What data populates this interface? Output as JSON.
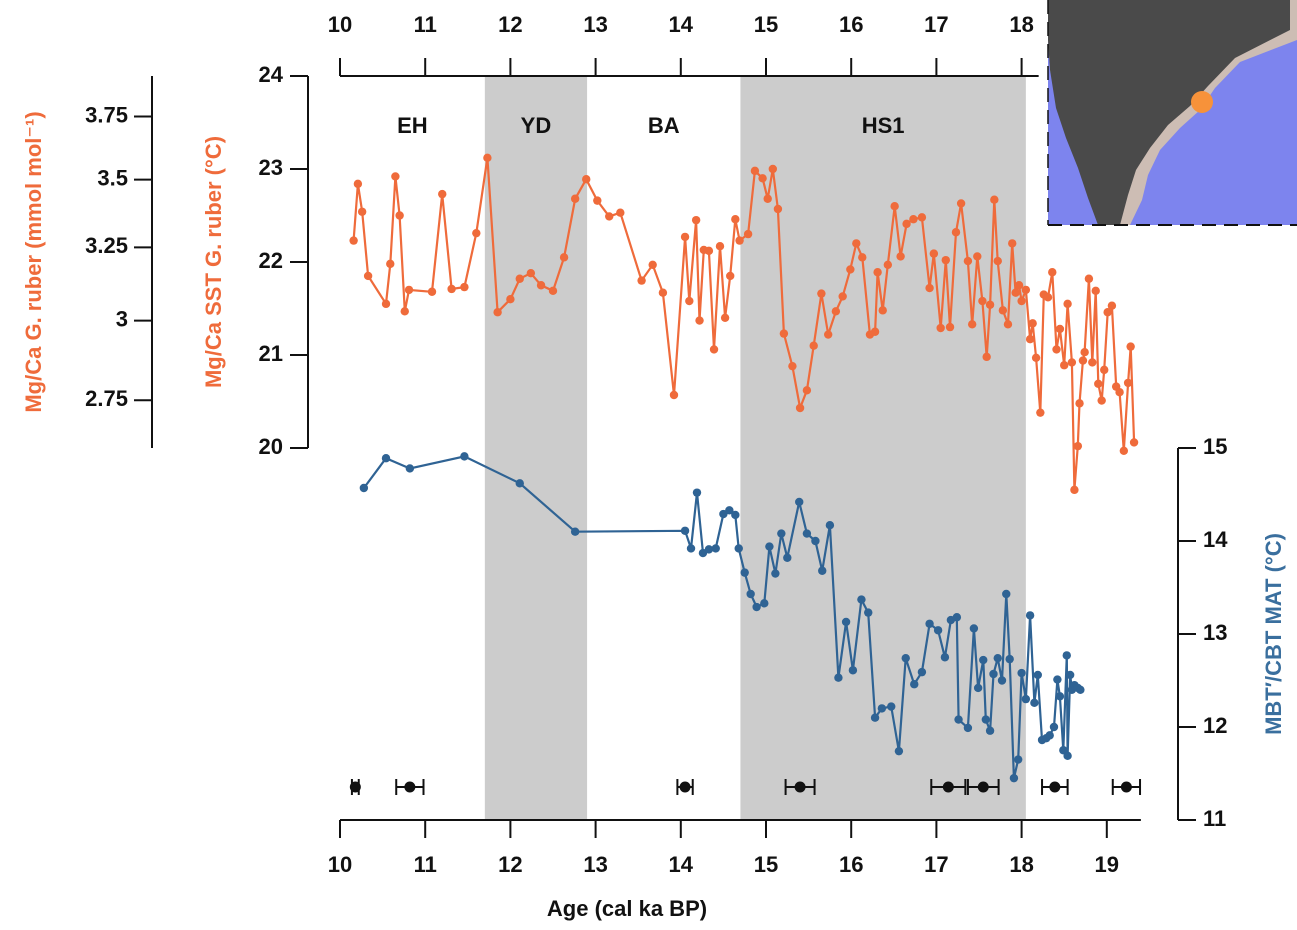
{
  "chart_data": {
    "type": "line",
    "xlabel": "Age (cal ka BP)",
    "xlim": [
      10,
      19.4
    ],
    "xticks": [
      10,
      11,
      12,
      13,
      14,
      15,
      16,
      17,
      18,
      19
    ],
    "top_xlim": [
      10,
      18.2
    ],
    "top_xticks": [
      10,
      11,
      12,
      13,
      14,
      15,
      16,
      17,
      18
    ],
    "ylabel": "Mg/Ca SST G. ruber (°C)",
    "ylim": [
      20,
      24
    ],
    "yticks": [
      20,
      21,
      22,
      23,
      24
    ],
    "y2label": "MBT′/CBT MAT (°C)",
    "y2lim": [
      11,
      15
    ],
    "y2ticks": [
      11,
      12,
      13,
      14,
      15
    ],
    "y3label": "Mg/Ca G. ruber (mmol mol⁻¹)",
    "y3lim": [
      2.61,
      3.92
    ],
    "y3ticks": [
      2.75,
      3,
      3.25,
      3.5,
      3.75
    ],
    "y3scale": "log",
    "periods": [
      {
        "name": "EH",
        "start": 10,
        "end": 11.7,
        "shaded": false
      },
      {
        "name": "YD",
        "start": 11.7,
        "end": 12.9,
        "shaded": true
      },
      {
        "name": "BA",
        "start": 12.9,
        "end": 14.7,
        "shaded": false
      },
      {
        "name": "HS1",
        "start": 14.7,
        "end": 18.05,
        "shaded": true
      }
    ],
    "series": [
      {
        "color": "#ef6b3b",
        "axis": "y",
        "x": [
          10.16,
          10.21,
          10.26,
          10.33,
          10.54,
          10.59,
          10.65,
          10.7,
          10.76,
          10.81,
          11.08,
          11.2,
          11.31,
          11.46,
          11.6,
          11.73,
          11.85,
          12.0,
          12.11,
          12.24,
          12.36,
          12.5,
          12.63,
          12.76,
          12.89,
          13.02,
          13.16,
          13.29,
          13.54,
          13.67,
          13.79,
          13.92,
          14.05,
          14.1,
          14.18,
          14.22,
          14.27,
          14.33,
          14.39,
          14.46,
          14.52,
          14.58,
          14.64,
          14.69,
          14.79,
          14.87,
          14.96,
          15.02,
          15.08,
          15.14,
          15.21,
          15.31,
          15.4,
          15.48,
          15.56,
          15.65,
          15.73,
          15.82,
          15.9,
          15.99,
          16.06,
          16.13,
          16.22,
          16.28,
          16.31,
          16.37,
          16.43,
          16.51,
          16.58,
          16.65,
          16.73,
          16.83,
          16.92,
          16.97,
          17.05,
          17.11,
          17.16,
          17.23,
          17.29,
          17.37,
          17.42,
          17.48,
          17.54,
          17.59,
          17.63,
          17.68,
          17.72,
          17.78,
          17.84,
          17.89,
          17.93,
          17.97,
          18.0,
          18.05,
          18.1,
          18.13,
          18.17,
          18.22,
          18.26,
          18.31,
          18.36,
          18.41,
          18.45,
          18.5,
          18.54,
          18.59,
          18.62,
          18.66,
          18.68,
          18.72,
          18.74,
          18.79,
          18.83,
          18.87,
          18.9,
          18.94,
          18.97,
          19.01,
          19.06,
          19.11,
          19.15,
          19.2,
          19.25,
          19.28,
          19.32
        ],
        "values": [
          22.23,
          22.84,
          22.54,
          21.85,
          21.55,
          21.98,
          22.92,
          22.5,
          21.47,
          21.7,
          21.68,
          22.73,
          21.71,
          21.73,
          22.31,
          23.12,
          21.46,
          21.6,
          21.82,
          21.88,
          21.75,
          21.69,
          22.05,
          22.68,
          22.89,
          22.66,
          22.49,
          22.53,
          21.8,
          21.97,
          21.67,
          20.57,
          22.27,
          21.58,
          22.45,
          21.37,
          22.13,
          22.12,
          21.06,
          22.17,
          21.4,
          21.85,
          22.46,
          22.23,
          22.3,
          22.98,
          22.9,
          22.68,
          23.0,
          22.57,
          21.23,
          20.88,
          20.43,
          20.62,
          21.1,
          21.66,
          21.22,
          21.47,
          21.63,
          21.92,
          22.2,
          22.05,
          21.22,
          21.25,
          21.89,
          21.48,
          21.97,
          22.6,
          22.06,
          22.41,
          22.46,
          22.48,
          21.72,
          22.09,
          21.29,
          22.02,
          21.3,
          22.32,
          22.63,
          22.01,
          21.33,
          22.06,
          21.58,
          20.98,
          21.54,
          22.67,
          22.01,
          21.48,
          21.33,
          22.2,
          21.67,
          21.75,
          21.58,
          21.7,
          21.17,
          21.34,
          20.97,
          20.38,
          21.65,
          21.62,
          21.89,
          21.06,
          21.28,
          20.89,
          21.55,
          20.92,
          19.55,
          20.02,
          20.48,
          20.94,
          21.03,
          21.82,
          20.92,
          21.69,
          20.69,
          20.51,
          20.84,
          21.46,
          21.53,
          20.66,
          20.6,
          19.97,
          20.7,
          21.09,
          20.06
        ]
      },
      {
        "color": "#2f6394",
        "axis": "y2",
        "x": [
          10.28,
          10.54,
          10.82,
          11.46,
          12.11,
          12.76,
          14.05,
          14.12,
          14.19,
          14.26,
          14.33,
          14.41,
          14.5,
          14.57,
          14.64,
          14.68,
          14.75,
          14.82,
          14.89,
          14.98,
          15.04,
          15.11,
          15.18,
          15.25,
          15.39,
          15.48,
          15.58,
          15.66,
          15.75,
          15.85,
          15.94,
          16.02,
          16.12,
          16.2,
          16.28,
          16.36,
          16.47,
          16.56,
          16.64,
          16.74,
          16.83,
          16.92,
          17.02,
          17.1,
          17.17,
          17.24,
          17.26,
          17.37,
          17.44,
          17.49,
          17.55,
          17.58,
          17.63,
          17.67,
          17.72,
          17.77,
          17.82,
          17.86,
          17.91,
          17.96,
          18.0,
          18.05,
          18.1,
          18.15,
          18.19,
          18.24,
          18.29,
          18.33,
          18.38,
          18.42,
          18.45,
          18.49,
          18.53,
          18.54,
          18.57,
          18.59,
          18.62,
          18.66,
          18.69
        ],
        "values": [
          14.57,
          14.89,
          14.78,
          14.91,
          14.62,
          14.1,
          14.11,
          13.92,
          14.52,
          13.87,
          13.91,
          13.92,
          14.29,
          14.33,
          14.28,
          13.92,
          13.66,
          13.43,
          13.29,
          13.33,
          13.94,
          13.65,
          14.08,
          13.82,
          14.42,
          14.08,
          14.0,
          13.68,
          14.17,
          12.53,
          13.13,
          12.61,
          13.37,
          13.23,
          12.1,
          12.2,
          12.22,
          11.74,
          12.74,
          12.46,
          12.59,
          13.11,
          13.04,
          12.75,
          13.15,
          13.18,
          12.08,
          11.99,
          13.06,
          12.42,
          12.72,
          12.08,
          11.96,
          12.57,
          12.74,
          12.5,
          13.43,
          12.73,
          11.45,
          11.65,
          12.58,
          12.3,
          13.2,
          12.26,
          12.56,
          11.86,
          11.88,
          11.91,
          12.0,
          12.51,
          12.33,
          11.75,
          12.77,
          11.69,
          12.56,
          12.4,
          12.45,
          12.42,
          12.4
        ]
      }
    ],
    "age_control": {
      "color": "#111111",
      "x": [
        10.18,
        10.82,
        14.05,
        15.4,
        17.14,
        17.55,
        18.39,
        19.23
      ],
      "err": [
        0.04,
        0.16,
        0.09,
        0.17,
        0.2,
        0.18,
        0.15,
        0.16
      ]
    }
  }
}
